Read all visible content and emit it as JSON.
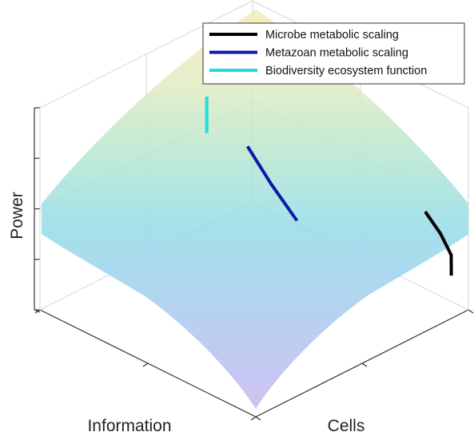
{
  "chart_data": {
    "type": "surface3d",
    "title": "",
    "axes": {
      "x": {
        "label": "Information",
        "ticks": 3
      },
      "y": {
        "label": "Cells",
        "ticks": 3
      },
      "z": {
        "label": "Power",
        "ticks": 5
      }
    },
    "grid": true,
    "legend_placement": "top-right",
    "surface": {
      "description_colormap": "parula-like, low values purple, mid cyan/green, high yellow",
      "colors": [
        "#c7b6ee",
        "#8fd0e8",
        "#9fe0cf",
        "#d6eac3",
        "#f6e8b8"
      ]
    },
    "series": [
      {
        "name": "Microbe metabolic scaling",
        "color": "#000000",
        "points": [
          [
            0.03,
            0.95,
            0.18
          ],
          [
            0.06,
            0.98,
            0.25
          ],
          [
            0.12,
            0.99,
            0.32
          ],
          [
            0.2,
            1.0,
            0.38
          ]
        ]
      },
      {
        "name": "Metazoan metabolic scaling",
        "color": "#0b1aa8",
        "points": [
          [
            0.42,
            0.62,
            0.42
          ],
          [
            0.5,
            0.58,
            0.58
          ],
          [
            0.58,
            0.55,
            0.74
          ]
        ]
      },
      {
        "name": "Biodiversity ecosystem function",
        "color": "#22dde0",
        "points": [
          [
            0.7,
            0.48,
            0.78
          ],
          [
            0.7,
            0.48,
            0.96
          ]
        ]
      }
    ]
  },
  "legend": {
    "items": [
      {
        "label": "Microbe metabolic scaling",
        "color": "#000000"
      },
      {
        "label": "Metazoan metabolic scaling",
        "color": "#0b1aa8"
      },
      {
        "label": "Biodiversity ecosystem function",
        "color": "#22dde0"
      }
    ]
  }
}
